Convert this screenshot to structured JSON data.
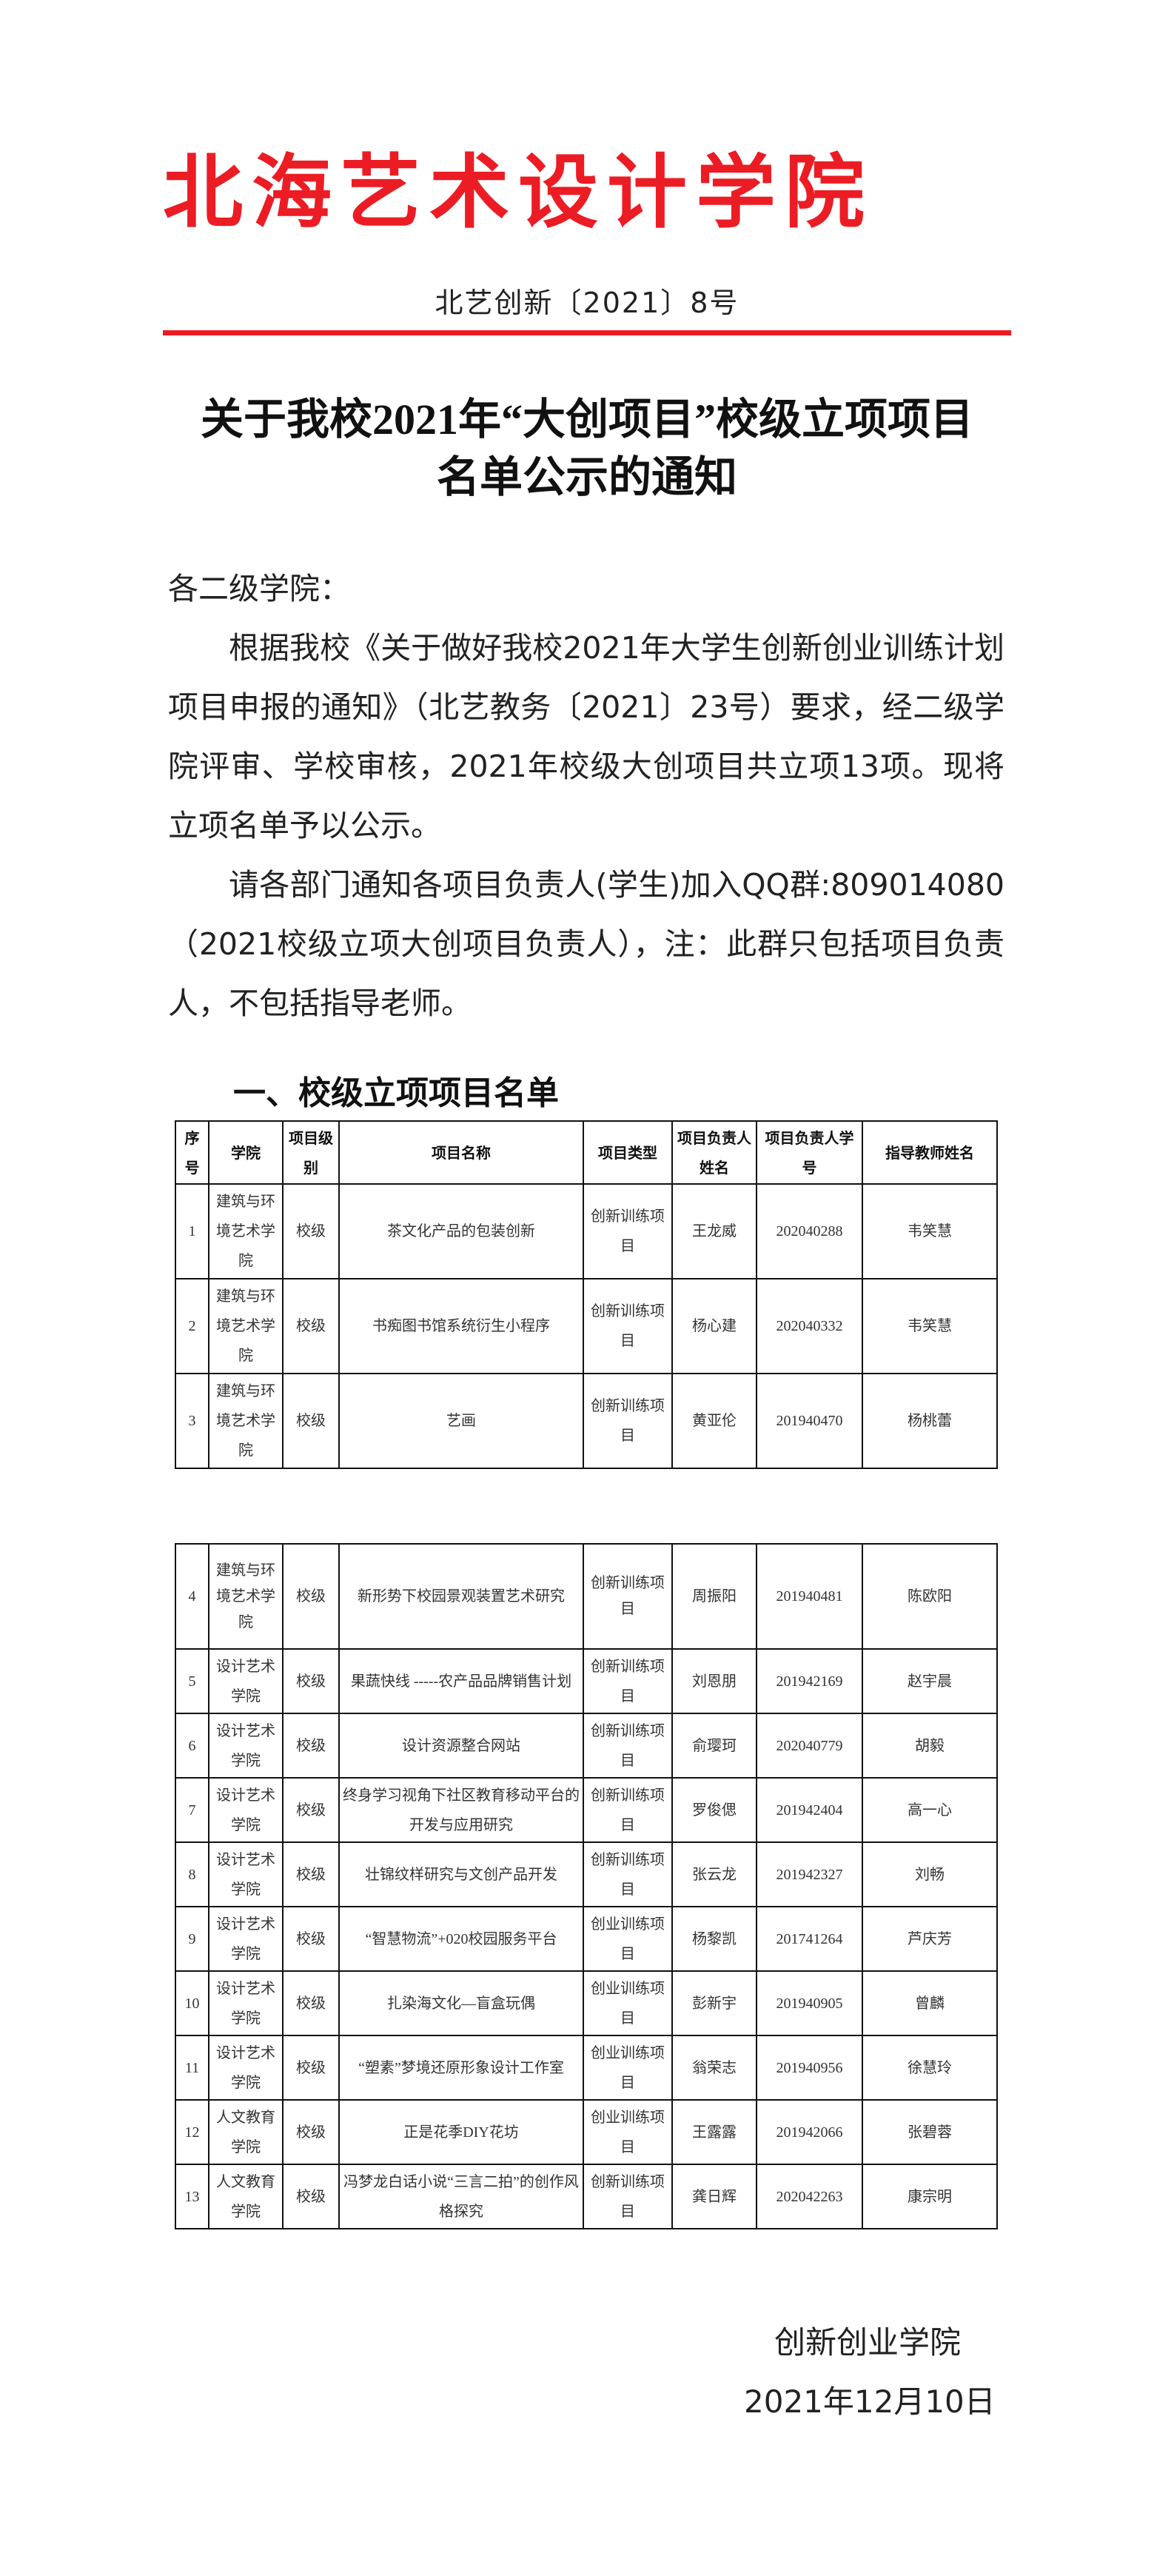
{
  "header": {
    "org_title": "北海艺术设计学院",
    "doc_number": "北艺创新〔2021〕8号",
    "rule_color": "#ec1c24"
  },
  "heading": {
    "line1": "关于我校2021年“大创项目”校级立项项目",
    "line2": "名单公示的通知"
  },
  "body": {
    "salutation": "各二级学院：",
    "paragraph1": "根据我校《关于做好我校2021年大学生创新创业训练计划项目申报的通知》（北艺教务〔2021〕23号）要求，经二级学院评审、学校审核，2021年校级大创项目共立项13项。现将立项名单予以公示。",
    "paragraph2": "请各部门通知各项目负责人(学生)加入QQ群:809014080（2021校级立项大创项目负责人），注：此群只包括项目负责人，不包括指导老师。"
  },
  "section_heading": "一、校级立项项目名单",
  "table": {
    "columns": [
      "序号",
      "学院",
      "项目级别",
      "项目名称",
      "项目类型",
      "项目负责人姓名",
      "项目负责人学号",
      "指导教师姓名"
    ],
    "rows": [
      [
        "1",
        "建筑与环境艺术学院",
        "校级",
        "茶文化产品的包装创新",
        "创新训练项目",
        "王龙威",
        "202040288",
        "韦笑慧"
      ],
      [
        "2",
        "建筑与环境艺术学院",
        "校级",
        "书痴图书馆系统衍生小程序",
        "创新训练项目",
        "杨心建",
        "202040332",
        "韦笑慧"
      ],
      [
        "3",
        "建筑与环境艺术学院",
        "校级",
        "艺画",
        "创新训练项目",
        "黄亚伦",
        "201940470",
        "杨桃蕾"
      ],
      [
        "4",
        "建筑与环境艺术学院",
        "校级",
        "新形势下校园景观装置艺术研究",
        "创新训练项目",
        "周振阳",
        "201940481",
        "陈欧阳"
      ],
      [
        "5",
        "设计艺术学院",
        "校级",
        "果蔬快线 -----农产品品牌销售计划",
        "创新训练项目",
        "刘恩朋",
        "201942169",
        "赵宇晨"
      ],
      [
        "6",
        "设计艺术学院",
        "校级",
        "设计资源整合网站",
        "创新训练项目",
        "俞璎珂",
        "202040779",
        "胡毅"
      ],
      [
        "7",
        "设计艺术学院",
        "校级",
        "终身学习视角下社区教育移动平台的开发与应用研究",
        "创新训练项目",
        "罗俊偲",
        "201942404",
        "高一心"
      ],
      [
        "8",
        "设计艺术学院",
        "校级",
        "壮锦纹样研究与文创产品开发",
        "创新训练项目",
        "张云龙",
        "201942327",
        "刘畅"
      ],
      [
        "9",
        "设计艺术学院",
        "校级",
        "“智慧物流”+020校园服务平台",
        "创业训练项目",
        "杨黎凯",
        "201741264",
        "芦庆芳"
      ],
      [
        "10",
        "设计艺术学院",
        "校级",
        "扎染海文化—盲盒玩偶",
        "创业训练项目",
        "彭新宇",
        "201940905",
        "曾麟"
      ],
      [
        "11",
        "设计艺术学院",
        "校级",
        "“塑素”梦境还原形象设计工作室",
        "创业训练项目",
        "翁荣志",
        "201940956",
        "徐慧玲"
      ],
      [
        "12",
        "人文教育学院",
        "校级",
        "正是花季DIY花坊",
        "创业训练项目",
        "王露露",
        "201942066",
        "张碧蓉"
      ],
      [
        "13",
        "人文教育学院",
        "校级",
        "冯梦龙白话小说“三言二拍”的创作风格探究",
        "创新训练项目",
        "龚日辉",
        "202042263",
        "康宗明"
      ]
    ]
  },
  "signature": {
    "organization": "创新创业学院",
    "date": "2021年12月10日"
  }
}
